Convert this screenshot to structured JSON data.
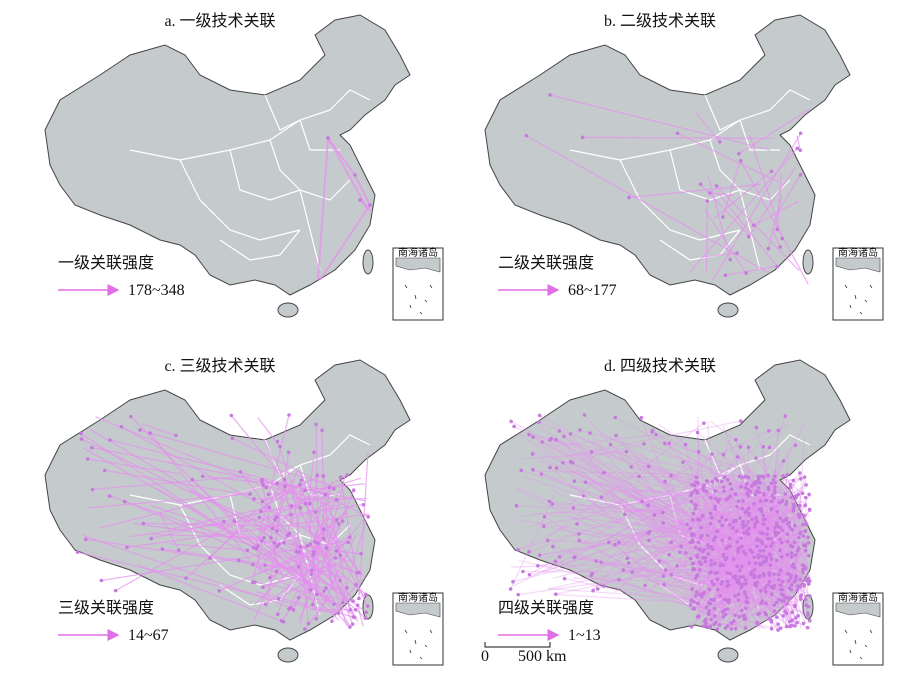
{
  "panels": [
    {
      "title": "a. 一级技术关联",
      "legend_title": "一级关联强度",
      "legend_range": "178~348",
      "inset_label": "南海诸岛"
    },
    {
      "title": "b. 二级技术关联",
      "legend_title": "二级关联强度",
      "legend_range": "68~177",
      "inset_label": "南海诸岛"
    },
    {
      "title": "c. 三级技术关联",
      "legend_title": "三级关联强度",
      "legend_range": "14~67",
      "inset_label": "南海诸岛"
    },
    {
      "title": "d. 四级技术关联",
      "legend_title": "四级关联强度",
      "legend_range": "1~13",
      "inset_label": "南海诸岛"
    }
  ],
  "scale_bar": {
    "start": "0",
    "end": "500 km"
  }
}
